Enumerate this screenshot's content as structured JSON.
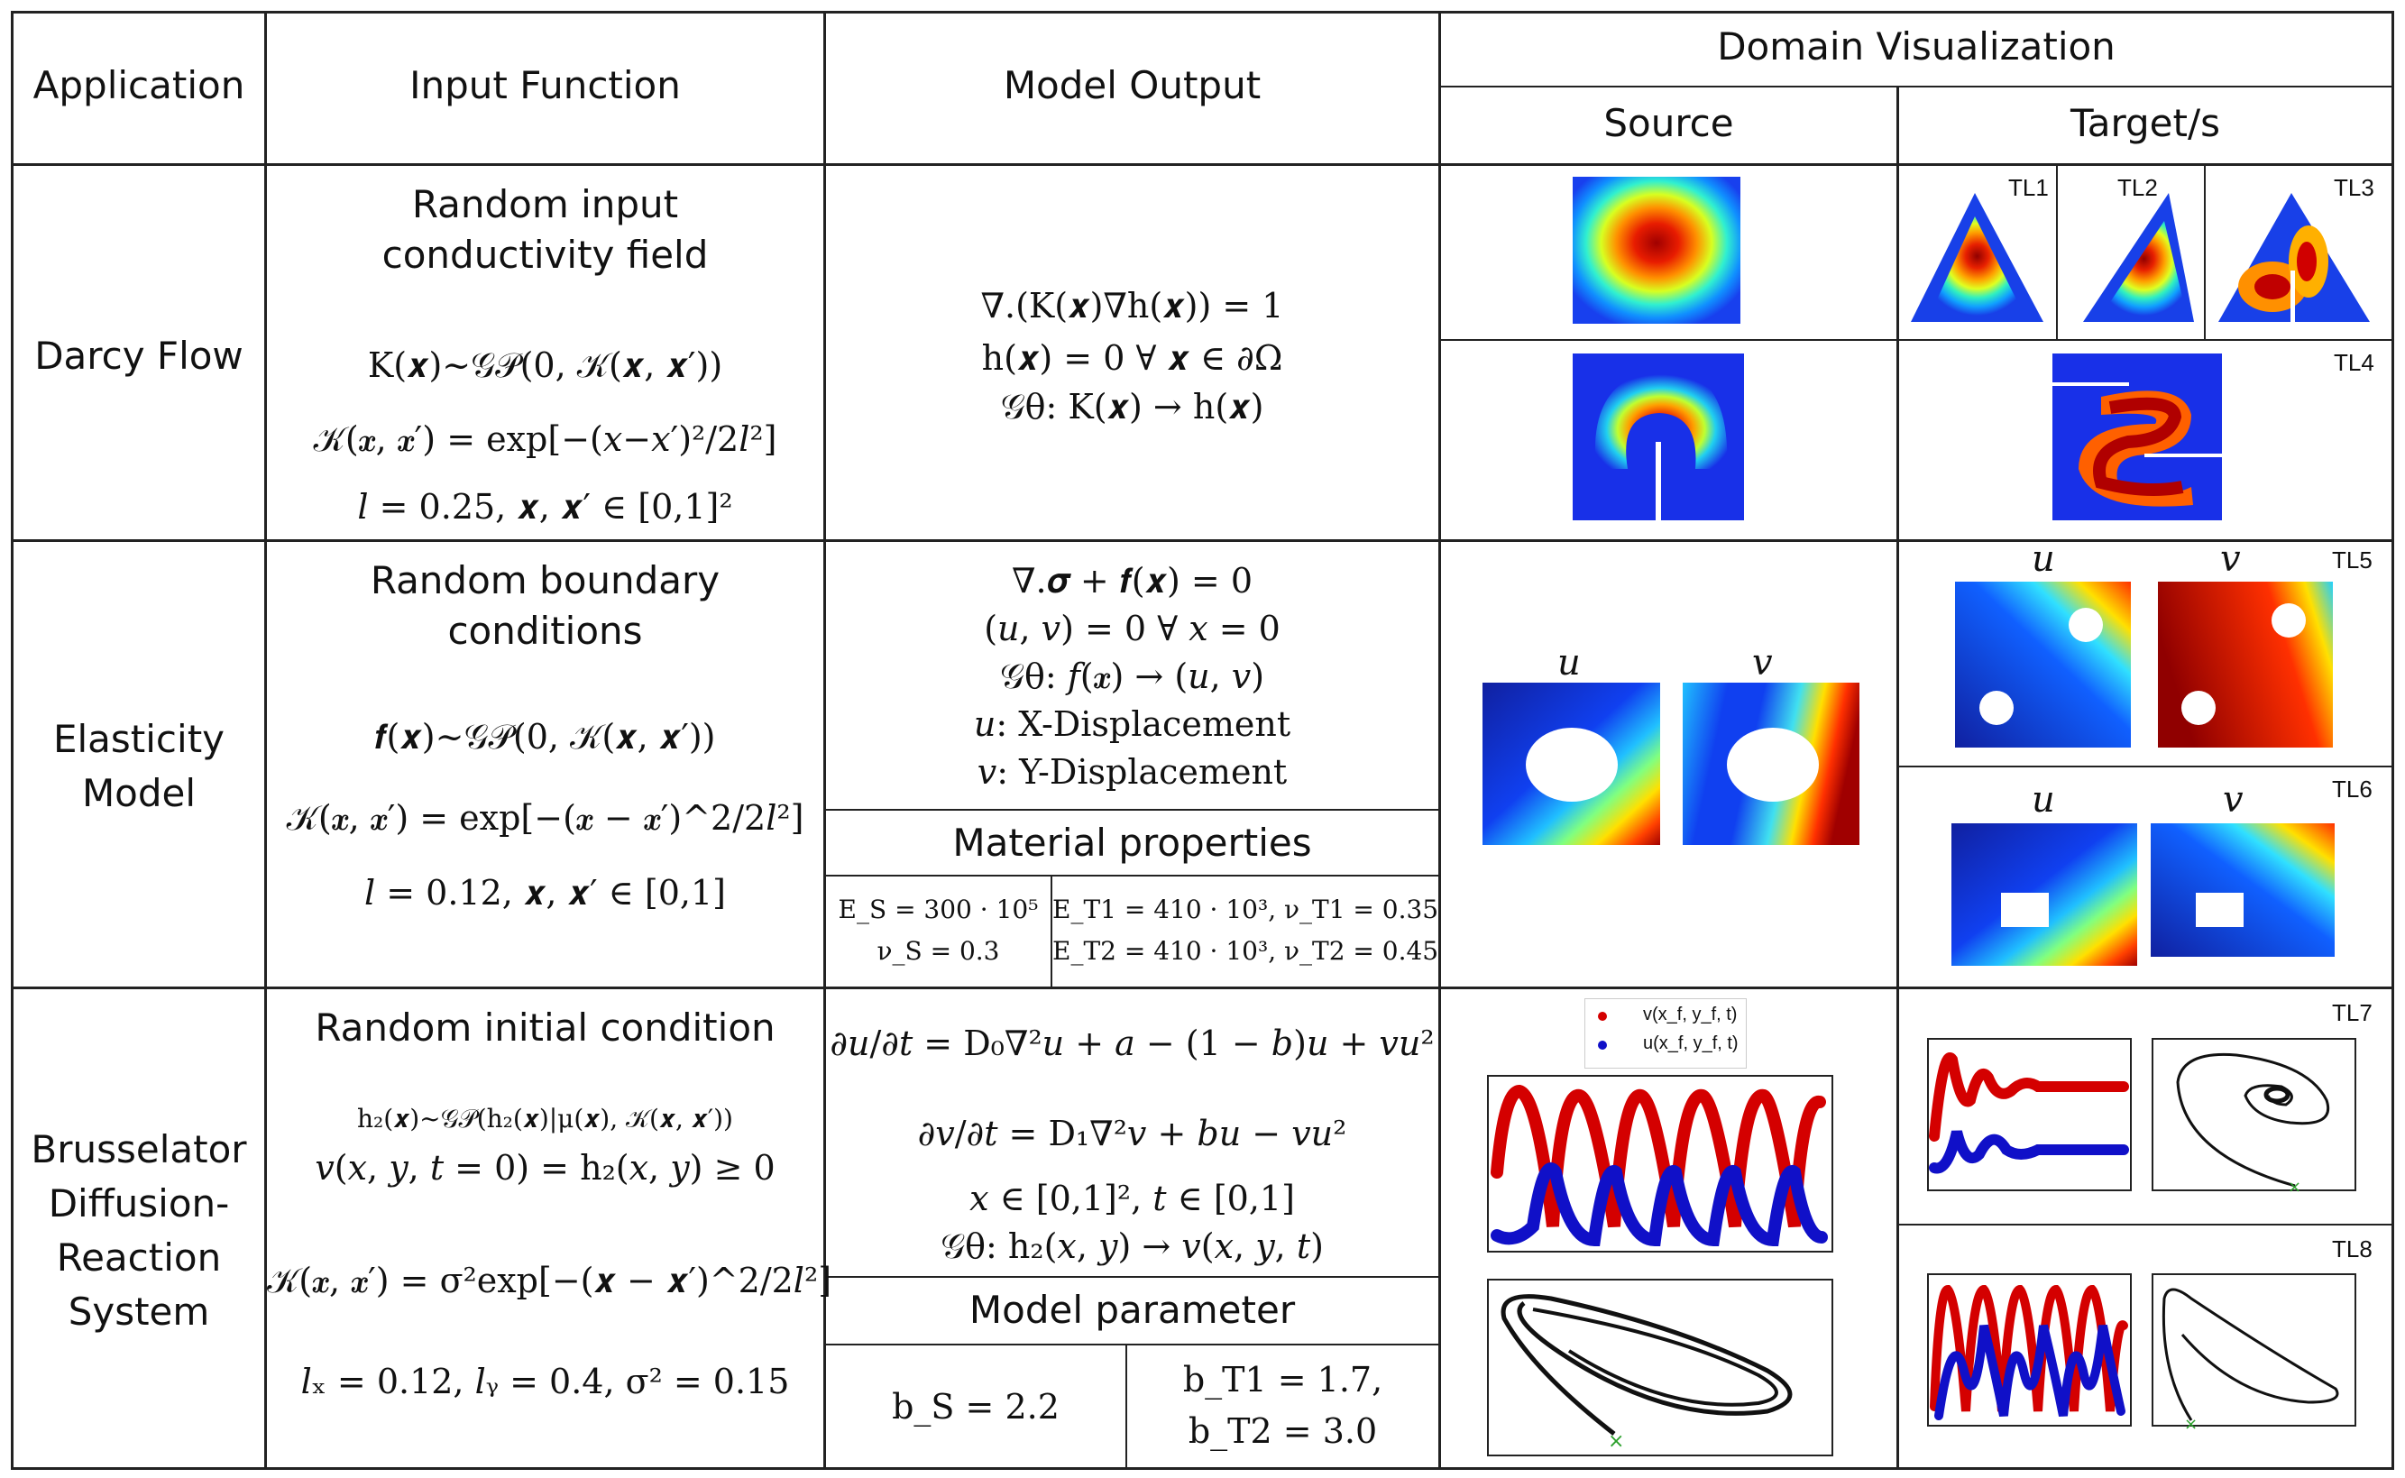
{
  "header": {
    "application": "Application",
    "input_function": "Input Function",
    "model_output": "Model Output",
    "domain_visualization": "Domain Visualization",
    "source": "Source",
    "targets": "Target/s"
  },
  "rows": {
    "darcy": {
      "name": "Darcy Flow",
      "input_title_1": "Random input",
      "input_title_2": "conductivity field",
      "input_eq_1": "K(𝒙)~𝒢𝒫(0, 𝒦(𝒙, 𝒙′))",
      "input_eq_2": "𝒦(𝒙, 𝒙′) = exp[−(𝑥−𝑥′)²/2𝑙²]",
      "input_eq_3": "𝑙 = 0.25, 𝒙, 𝒙′ ∈ [0,1]²",
      "output_eq_1": "∇.(K(𝒙)∇h(𝒙)) = 1",
      "output_eq_2": "h(𝒙) = 0  ∀  𝒙 ∈ ∂Ω",
      "output_eq_3": "𝒢θ: K(𝒙) → h(𝒙)",
      "tl1": "TL1",
      "tl2": "TL2",
      "tl3": "TL3",
      "tl4": "TL4"
    },
    "elasticity": {
      "name_1": "Elasticity",
      "name_2": "Model",
      "input_title_1": "Random boundary",
      "input_title_2": "conditions",
      "input_eq_1": "𝒇(𝒙)~𝒢𝒫(0, 𝒦(𝒙, 𝒙′))",
      "input_eq_2": "𝒦(𝒙, 𝒙′) = exp[−(𝒙 − 𝒙′)^2/2𝑙²]",
      "input_eq_3": "𝑙 = 0.12, 𝒙, 𝒙′ ∈ [0,1]",
      "output_eq_1": "∇.𝝈 + 𝒇(𝒙) = 0",
      "output_eq_2": "(𝑢, 𝑣) = 0 ∀ 𝑥 = 0",
      "output_eq_3": "𝒢θ: 𝑓(𝒙) → (𝑢, 𝑣)",
      "output_eq_4": "𝑢: X-Displacement",
      "output_eq_5": "𝑣: Y-Displacement",
      "material_title": "Material properties",
      "mat_source_1": "E_S = 300 · 10⁵",
      "mat_source_2": "ν_S = 0.3",
      "mat_target_1": "E_T1 = 410 · 10³, ν_T1 = 0.35",
      "mat_target_2": "E_T2 = 410 · 10³, ν_T2 = 0.45",
      "u_label": "u",
      "v_label": "v",
      "tl5": "TL5",
      "tl6": "TL6"
    },
    "brusselator": {
      "name_1": "Brusselator",
      "name_2": "Diffusion-",
      "name_3": "Reaction",
      "name_4": "System",
      "input_title": "Random initial condition",
      "input_eq_1": "h₂(𝒙)~𝒢𝒫(h₂(𝒙)|μ(𝒙), 𝒦(𝒙, 𝒙′))",
      "input_eq_2": "𝑣(𝑥, 𝑦, 𝑡 = 0) = h₂(𝑥, 𝑦) ≥ 0",
      "input_eq_3": "𝒦(𝒙, 𝒙′) = σ²exp[−(𝒙 − 𝒙′)^2/2𝑙²]",
      "input_eq_4": "𝑙ₓ = 0.12, 𝑙ᵧ = 0.4, σ² = 0.15",
      "output_eq_1": "∂𝑢/∂𝑡 = D₀∇²𝑢 + 𝑎 − (1 − 𝑏)𝑢 + 𝑣𝑢²",
      "output_eq_2": "∂𝑣/∂𝑡 = D₁∇²𝑣 + 𝑏𝑢 − 𝑣𝑢²",
      "output_eq_3": "𝑥 ∈ [0,1]², 𝑡 ∈ [0,1]",
      "output_eq_4": "𝒢θ: h₂(𝑥, 𝑦) → 𝑣(𝑥, 𝑦, 𝑡)",
      "param_title": "Model parameter",
      "param_source": "b_S = 2.2",
      "param_target_1": "b_T1 = 1.7,",
      "param_target_2": "b_T2 = 3.0",
      "legend_v": "v(x_f, y_f, t)",
      "legend_u": "u(x_f, y_f, t)",
      "tl7": "TL7",
      "tl8": "TL8"
    }
  },
  "colors": {
    "red": "#d40000",
    "blue": "#1010c8",
    "line": "#222222",
    "green": "#2ca02c"
  }
}
